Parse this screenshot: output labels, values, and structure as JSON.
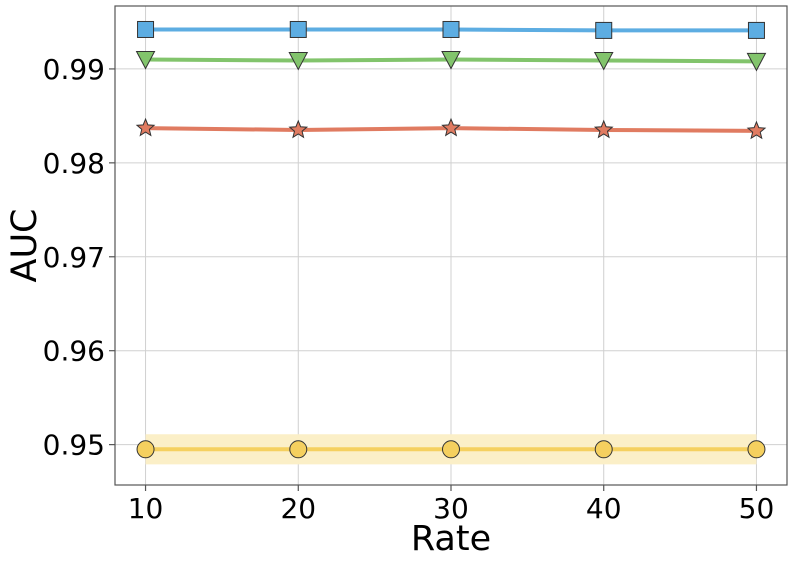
{
  "chart_data": {
    "type": "line",
    "xlabel": "Rate",
    "ylabel": "AUC",
    "x": [
      10,
      20,
      30,
      40,
      50
    ],
    "xlim": [
      8,
      52
    ],
    "ylim": [
      0.9457,
      0.9967
    ],
    "xticks": [
      10,
      20,
      30,
      40,
      50
    ],
    "xtick_labels": [
      "10",
      "20",
      "30",
      "40",
      "50"
    ],
    "yticks": [
      0.95,
      0.96,
      0.97,
      0.98,
      0.99
    ],
    "ytick_labels": [
      "0.95",
      "0.96",
      "0.97",
      "0.98",
      "0.99"
    ],
    "grid": true,
    "legend": "none",
    "series": [
      {
        "marker": "square",
        "color": "#5DADE2",
        "marker_color": "#5DADE2",
        "values": [
          0.9942,
          0.9942,
          0.9942,
          0.9941,
          0.9941
        ]
      },
      {
        "marker": "triangle-down",
        "color": "#82C46C",
        "marker_color": "#82C46C",
        "values": [
          0.991,
          0.9909,
          0.991,
          0.9909,
          0.9908
        ]
      },
      {
        "marker": "star",
        "color": "#E07B61",
        "marker_color": "#E07B61",
        "values": [
          0.9837,
          0.9835,
          0.9837,
          0.9835,
          0.9834
        ]
      },
      {
        "marker": "circle",
        "color": "#F5D05F",
        "marker_color": "#F5D05F",
        "band_color": "#FBEFC7",
        "band_halfwidth": 0.0016,
        "values": [
          0.9495,
          0.9495,
          0.9495,
          0.9495,
          0.9495
        ]
      }
    ]
  }
}
